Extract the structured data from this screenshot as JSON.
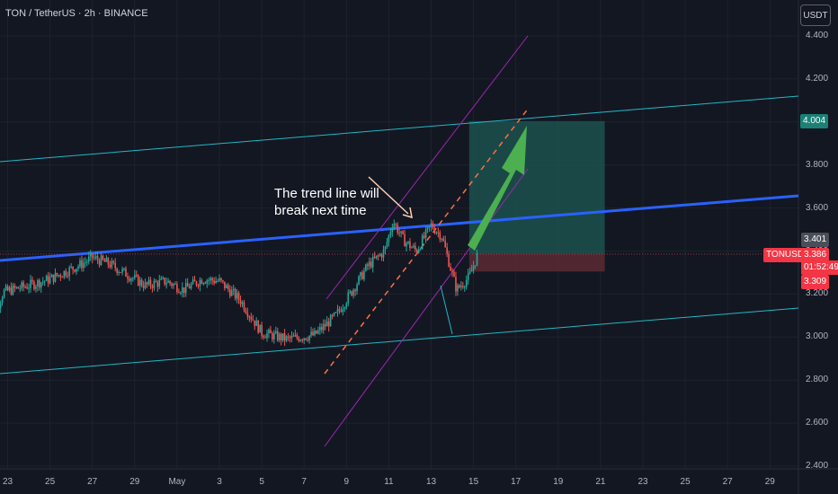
{
  "header": {
    "symbol_title": "TON / TetherUS · 2h · BINANCE",
    "currency_button": "USDT"
  },
  "annotation": {
    "line1": "The trend line will",
    "line2": "break next time"
  },
  "badges": {
    "target_price": "4.004",
    "symbol": "TONUSDT",
    "ref_price": "3.401",
    "last_price": "3.386",
    "countdown": "01:52:49",
    "stop_price": "3.309"
  },
  "colors": {
    "background": "#131722",
    "up_candle": "#26a69a",
    "down_candle": "#ef5350",
    "main_trendline": "#2962ff",
    "channel_lines": "#22b8c6",
    "parallel_channel": "#9c27b0",
    "dashed_trendline": "#ff6f43",
    "arrow": "#4caf50",
    "target_zone": "#1e5954",
    "stop_zone": "#5c2a33",
    "target_badge": "#1b8075",
    "last_badge": "#f23645"
  },
  "chart_data": {
    "type": "candlestick",
    "title": "TON / TetherUS · 2h · BINANCE",
    "y_axis": {
      "ticks": [
        "4.400",
        "4.200",
        "4.000",
        "3.800",
        "3.600",
        "3.400",
        "3.200",
        "3.000",
        "2.800",
        "2.600",
        "2.400"
      ],
      "range": [
        2.4,
        4.4
      ],
      "currency": "USDT"
    },
    "x_axis": {
      "ticks": [
        "23",
        "25",
        "27",
        "29",
        "May",
        "3",
        "5",
        "7",
        "9",
        "11",
        "13",
        "15",
        "17",
        "19",
        "21",
        "23",
        "25",
        "27",
        "29"
      ],
      "range": [
        "Apr 22",
        "May 30"
      ]
    },
    "price_path": [
      {
        "day": 22.0,
        "price": 3.02
      },
      {
        "day": 22.8,
        "price": 3.21
      },
      {
        "day": 24.0,
        "price": 3.24
      },
      {
        "day": 25.0,
        "price": 3.27
      },
      {
        "day": 26.5,
        "price": 3.34
      },
      {
        "day": 27.0,
        "price": 3.37
      },
      {
        "day": 27.8,
        "price": 3.34
      },
      {
        "day": 28.5,
        "price": 3.3
      },
      {
        "day": 29.5,
        "price": 3.24
      },
      {
        "day": 30.5,
        "price": 3.26
      },
      {
        "day": 31.3,
        "price": 3.22
      },
      {
        "day": 32.2,
        "price": 3.27
      },
      {
        "day": 33.0,
        "price": 3.26
      },
      {
        "day": 34.0,
        "price": 3.17
      },
      {
        "day": 35.0,
        "price": 3.02
      },
      {
        "day": 36.2,
        "price": 2.99
      },
      {
        "day": 37.5,
        "price": 3.01
      },
      {
        "day": 38.5,
        "price": 3.1
      },
      {
        "day": 39.3,
        "price": 3.22
      },
      {
        "day": 40.0,
        "price": 3.33
      },
      {
        "day": 40.8,
        "price": 3.4
      },
      {
        "day": 41.2,
        "price": 3.54
      },
      {
        "day": 41.7,
        "price": 3.45
      },
      {
        "day": 42.3,
        "price": 3.4
      },
      {
        "day": 43.0,
        "price": 3.52
      },
      {
        "day": 43.5,
        "price": 3.47
      },
      {
        "day": 44.2,
        "price": 3.22
      },
      {
        "day": 44.8,
        "price": 3.28
      },
      {
        "day": 45.2,
        "price": 3.386
      }
    ],
    "levels": {
      "last": 3.386,
      "ref": 3.401,
      "target": 4.004,
      "stop": 3.309
    },
    "annotations": [
      "The trend line will break next time"
    ]
  }
}
